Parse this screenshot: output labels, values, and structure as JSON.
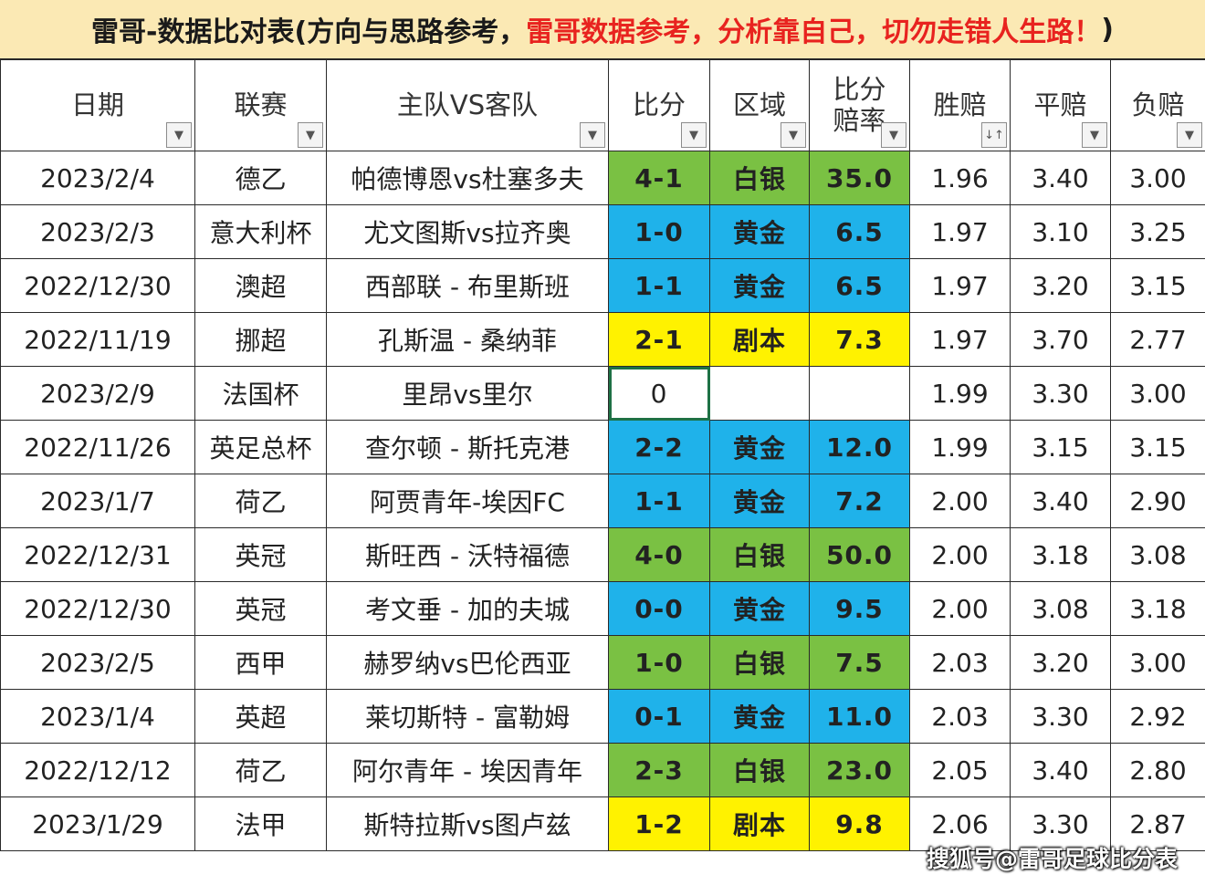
{
  "title": {
    "part1": "雷哥-数据比对表(方向与思路参考，",
    "part2": "雷哥数据参考，分析靠自己，切勿走错人生路！",
    "part3": ")"
  },
  "headers": {
    "date": "日期",
    "league": "联赛",
    "match": "主队VS客队",
    "score": "比分",
    "zone": "区域",
    "rate_line1": "比分",
    "rate_line2": "赔率",
    "win": "胜赔",
    "draw": "平赔",
    "lose": "负赔",
    "filter_glyph": "▼",
    "sort_glyph": "↓↑"
  },
  "colors": {
    "green": "#7ac143",
    "blue": "#1fb2ea",
    "yellow": "#fff200",
    "score_text": "#d6241f",
    "title_bg": "#fbe9b4"
  },
  "rows": [
    {
      "date": "2023/2/4",
      "league": "德乙",
      "match": "帕德博恩vs杜塞多夫",
      "score": "4-1",
      "zone": "白银",
      "rate": "35.0",
      "win": "1.96",
      "draw": "3.40",
      "lose": "3.00",
      "color": "green"
    },
    {
      "date": "2023/2/3",
      "league": "意大利杯",
      "match": "尤文图斯vs拉齐奥",
      "score": "1-0",
      "zone": "黄金",
      "rate": "6.5",
      "win": "1.97",
      "draw": "3.10",
      "lose": "3.25",
      "color": "blue"
    },
    {
      "date": "2022/12/30",
      "league": "澳超",
      "match": "西部联 - 布里斯班",
      "score": "1-1",
      "zone": "黄金",
      "rate": "6.5",
      "win": "1.97",
      "draw": "3.20",
      "lose": "3.15",
      "color": "blue"
    },
    {
      "date": "2022/11/19",
      "league": "挪超",
      "match": "孔斯温 - 桑纳菲",
      "score": "2-1",
      "zone": "剧本",
      "rate": "7.3",
      "win": "1.97",
      "draw": "3.70",
      "lose": "2.77",
      "color": "yellow"
    },
    {
      "date": "2023/2/9",
      "league": "法国杯",
      "match": "里昂vs里尔",
      "score": "0",
      "zone": "",
      "rate": "",
      "win": "1.99",
      "draw": "3.30",
      "lose": "3.00",
      "color": "white"
    },
    {
      "date": "2022/11/26",
      "league": "英足总杯",
      "match": "查尔顿 - 斯托克港",
      "score": "2-2",
      "zone": "黄金",
      "rate": "12.0",
      "win": "1.99",
      "draw": "3.15",
      "lose": "3.15",
      "color": "blue"
    },
    {
      "date": "2023/1/7",
      "league": "荷乙",
      "match": "阿贾青年-埃因FC",
      "score": "1-1",
      "zone": "黄金",
      "rate": "7.2",
      "win": "2.00",
      "draw": "3.40",
      "lose": "2.90",
      "color": "blue"
    },
    {
      "date": "2022/12/31",
      "league": "英冠",
      "match": "斯旺西 - 沃特福德",
      "score": "4-0",
      "zone": "白银",
      "rate": "50.0",
      "win": "2.00",
      "draw": "3.18",
      "lose": "3.08",
      "color": "green"
    },
    {
      "date": "2022/12/30",
      "league": "英冠",
      "match": "考文垂 - 加的夫城",
      "score": "0-0",
      "zone": "黄金",
      "rate": "9.5",
      "win": "2.00",
      "draw": "3.08",
      "lose": "3.18",
      "color": "blue"
    },
    {
      "date": "2023/2/5",
      "league": "西甲",
      "match": "赫罗纳vs巴伦西亚",
      "score": "1-0",
      "zone": "白银",
      "rate": "7.5",
      "win": "2.03",
      "draw": "3.20",
      "lose": "3.00",
      "color": "green"
    },
    {
      "date": "2023/1/4",
      "league": "英超",
      "match": "莱切斯特 - 富勒姆",
      "score": "0-1",
      "zone": "黄金",
      "rate": "11.0",
      "win": "2.03",
      "draw": "3.30",
      "lose": "2.92",
      "color": "blue"
    },
    {
      "date": "2022/12/12",
      "league": "荷乙",
      "match": "阿尔青年 - 埃因青年",
      "score": "2-3",
      "zone": "白银",
      "rate": "23.0",
      "win": "2.05",
      "draw": "3.40",
      "lose": "2.80",
      "color": "green"
    },
    {
      "date": "2023/1/29",
      "league": "法甲",
      "match": "斯特拉斯vs图卢兹",
      "score": "1-2",
      "zone": "剧本",
      "rate": "9.8",
      "win": "2.06",
      "draw": "3.30",
      "lose": "2.87",
      "color": "yellow"
    }
  ],
  "watermark": "搜狐号@雷哥足球比分表"
}
